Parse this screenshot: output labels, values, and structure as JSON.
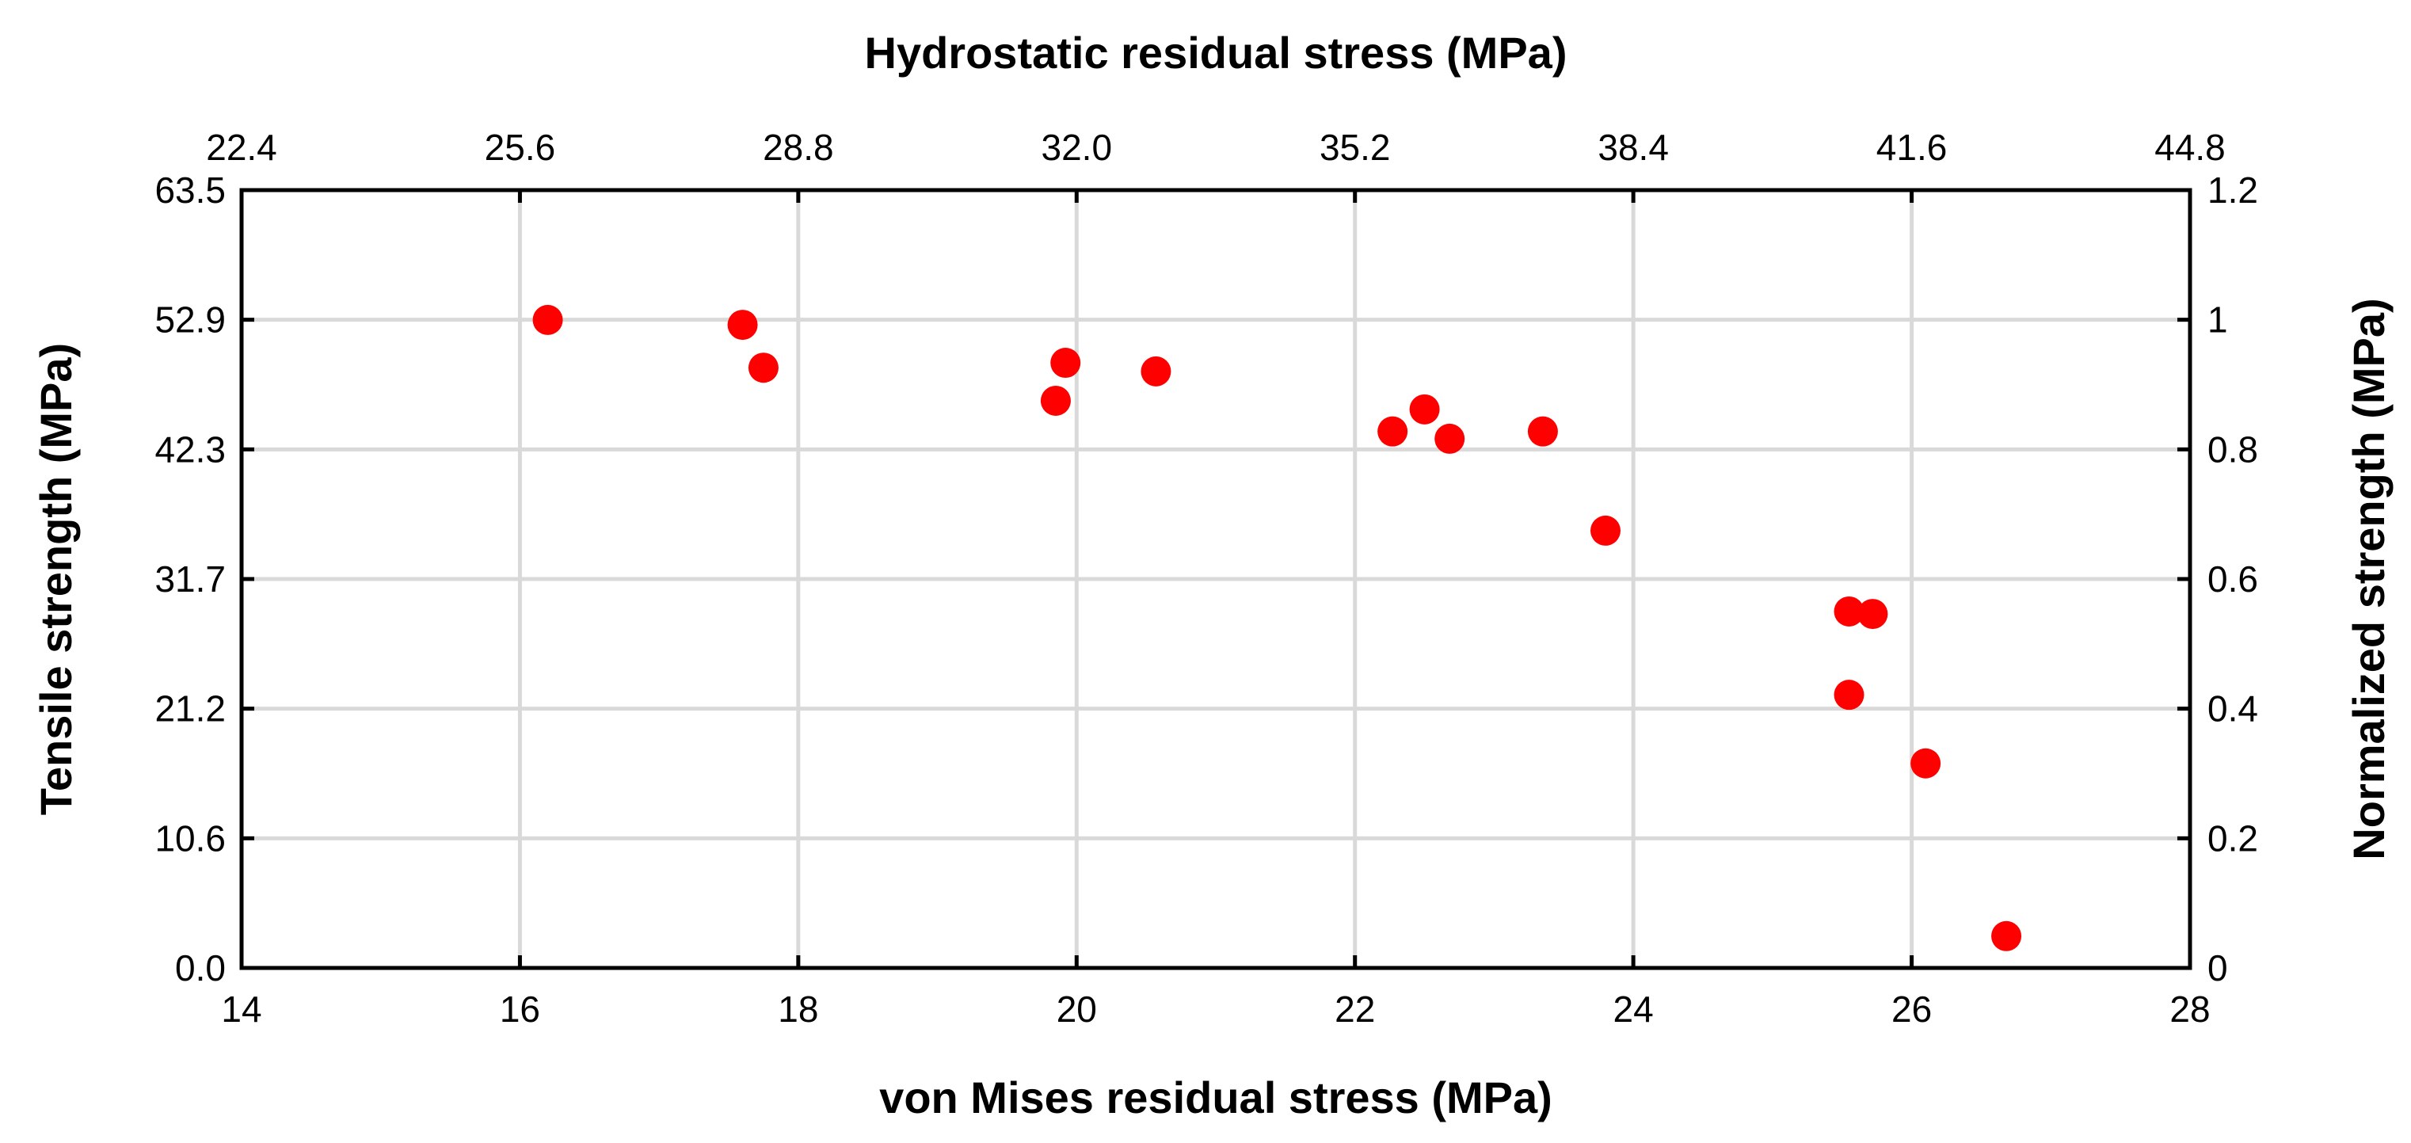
{
  "chart_data": {
    "type": "scatter",
    "title": "",
    "xlabel": "von Mises residual stress (MPa)",
    "x2label": "Hydrostatic residual stress (MPa)",
    "ylabel": "Tensile strength (MPa)",
    "y2label": "Normalized strength (MPa)",
    "xlim": [
      14,
      28
    ],
    "x2lim": [
      22.4,
      44.8
    ],
    "ylim": [
      0,
      63.5
    ],
    "y2lim": [
      0,
      1.2
    ],
    "x_ticks": [
      "14",
      "16",
      "18",
      "20",
      "22",
      "24",
      "26",
      "28"
    ],
    "x2_ticks": [
      "22.4",
      "25.6",
      "28.8",
      "32.0",
      "35.2",
      "38.4",
      "41.6",
      "44.8"
    ],
    "y_ticks": [
      "0.0",
      "10.6",
      "21.2",
      "31.7",
      "42.3",
      "52.9",
      "63.5"
    ],
    "y2_ticks": [
      "0",
      "0.2",
      "0.4",
      "0.6",
      "0.8",
      "1",
      "1.2"
    ],
    "grid": true,
    "marker_color": "#ff0000",
    "points": [
      {
        "x": 16.2,
        "y": 52.9
      },
      {
        "x": 17.6,
        "y": 52.5
      },
      {
        "x": 17.75,
        "y": 49.0
      },
      {
        "x": 19.85,
        "y": 46.3
      },
      {
        "x": 19.92,
        "y": 49.4
      },
      {
        "x": 20.57,
        "y": 48.7
      },
      {
        "x": 22.27,
        "y": 43.8
      },
      {
        "x": 22.5,
        "y": 45.6
      },
      {
        "x": 22.68,
        "y": 43.2
      },
      {
        "x": 23.35,
        "y": 43.8
      },
      {
        "x": 23.8,
        "y": 35.7
      },
      {
        "x": 25.55,
        "y": 29.1
      },
      {
        "x": 25.72,
        "y": 28.9
      },
      {
        "x": 25.55,
        "y": 22.3
      },
      {
        "x": 26.1,
        "y": 16.7
      },
      {
        "x": 26.68,
        "y": 2.6
      }
    ]
  }
}
